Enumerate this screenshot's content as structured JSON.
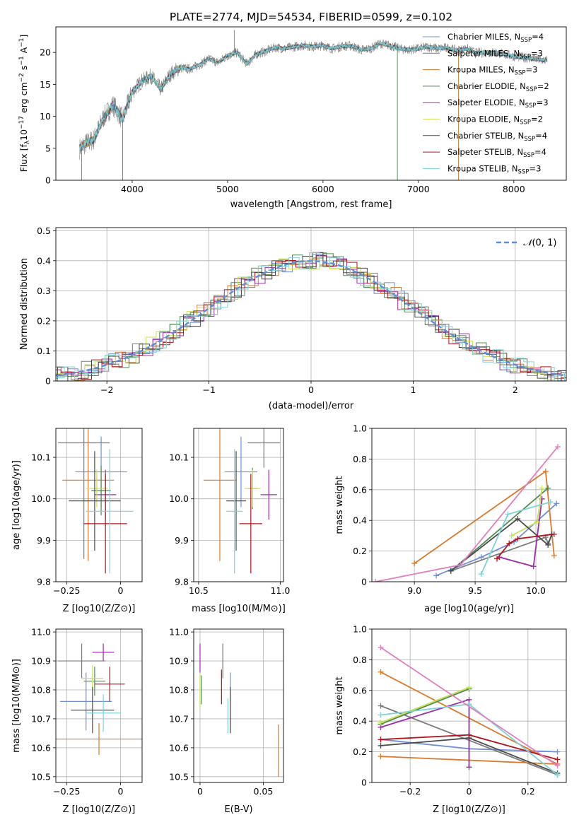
{
  "title": "PLATE=2774, MJD=54534, FIBERID=0599, z=0.102",
  "models": [
    {
      "name": "Chabrier MILES, N<sub>SSP</sub>=4",
      "label_main": "Chabrier MILES, N",
      "label_sub": "SSP",
      "label_tail": "=4",
      "color": "#6f8fd6"
    },
    {
      "name": "Salpeter MILES, N_SSP=3",
      "label_main": "Salpeter MILES, N",
      "label_sub": "SSP",
      "label_tail": "=3",
      "color": "#7b7b7b"
    },
    {
      "name": "Kroupa MILES, N_SSP=3",
      "label_main": "Kroupa MILES, N",
      "label_sub": "SSP",
      "label_tail": "=3",
      "color": "#d97a2b"
    },
    {
      "name": "Chabrier ELODIE, N_SSP=2",
      "label_main": "Chabrier ELODIE, N",
      "label_sub": "SSP",
      "label_tail": "=2",
      "color": "#4e8a4e"
    },
    {
      "name": "Salpeter ELODIE, N_SSP=3",
      "label_main": "Salpeter ELODIE, N",
      "label_sub": "SSP",
      "label_tail": "=3",
      "color": "#9a2ea6"
    },
    {
      "name": "Kroupa ELODIE, N_SSP=2",
      "label_main": "Kroupa ELODIE, N",
      "label_sub": "SSP",
      "label_tail": "=2",
      "color": "#c8e05a"
    },
    {
      "name": "Chabrier STELIB, N_SSP=4",
      "label_main": "Chabrier STELIB, N",
      "label_sub": "SSP",
      "label_tail": "=4",
      "color": "#4a4a4a"
    },
    {
      "name": "Salpeter STELIB, N_SSP=4",
      "label_main": "Salpeter STELIB, N",
      "label_sub": "SSP",
      "label_tail": "=4",
      "color": "#b0141c"
    },
    {
      "name": "Kroupa STELIB, N_SSP=3",
      "label_main": "Kroupa STELIB, N",
      "label_sub": "SSP",
      "label_tail": "=3",
      "color": "#7fd3d6"
    }
  ],
  "chart_data": [
    {
      "type": "line",
      "id": "spectrum",
      "xlabel": "wavelength [Angstrom, rest frame]",
      "ylabel": "Flux [f_λ 10^-17 erg cm^-2 s^-1 A^-1]",
      "ylabel_parts": {
        "a": "Flux [f",
        "b": "λ",
        "c": "10",
        "d": "−17",
        "e": " erg cm",
        "f": "−2",
        "g": " s",
        "h": "−1",
        "i": " A",
        "j": "−1",
        "k": "]"
      },
      "xlim": [
        3200,
        8550
      ],
      "ylim": [
        0,
        24
      ],
      "xticks": [
        4000,
        5000,
        6000,
        7000,
        8000
      ],
      "yticks": [
        0,
        5,
        10,
        15,
        20
      ],
      "envelope": [
        [
          3450,
          5.0
        ],
        [
          3500,
          5.6
        ],
        [
          3600,
          6.4
        ],
        [
          3700,
          9.8
        ],
        [
          3800,
          11.8
        ],
        [
          3900,
          9.5
        ],
        [
          4000,
          13.8
        ],
        [
          4100,
          15.5
        ],
        [
          4200,
          16.3
        ],
        [
          4300,
          14.2
        ],
        [
          4400,
          16.6
        ],
        [
          4500,
          17.6
        ],
        [
          4600,
          17.4
        ],
        [
          4700,
          18.0
        ],
        [
          4800,
          19.0
        ],
        [
          4900,
          18.4
        ],
        [
          5000,
          19.5
        ],
        [
          5100,
          20.0
        ],
        [
          5200,
          18.2
        ],
        [
          5300,
          19.7
        ],
        [
          5400,
          20.2
        ],
        [
          5500,
          20.8
        ],
        [
          5600,
          20.6
        ],
        [
          5700,
          20.9
        ],
        [
          5800,
          21.1
        ],
        [
          5900,
          20.9
        ],
        [
          6000,
          21.1
        ],
        [
          6100,
          20.6
        ],
        [
          6200,
          21.0
        ],
        [
          6300,
          21.0
        ],
        [
          6400,
          20.4
        ],
        [
          6500,
          20.6
        ],
        [
          6600,
          21.4
        ],
        [
          6700,
          21.1
        ],
        [
          6800,
          20.6
        ],
        [
          6900,
          20.4
        ],
        [
          7000,
          20.6
        ],
        [
          7100,
          20.9
        ],
        [
          7200,
          20.6
        ],
        [
          7300,
          20.7
        ],
        [
          7400,
          20.3
        ],
        [
          7500,
          20.6
        ],
        [
          7600,
          19.9
        ],
        [
          7700,
          20.0
        ],
        [
          7800,
          20.0
        ],
        [
          7900,
          19.7
        ],
        [
          8000,
          19.4
        ],
        [
          8100,
          19.2
        ],
        [
          8200,
          19.0
        ],
        [
          8300,
          18.8
        ],
        [
          8350,
          18.7
        ]
      ]
    },
    {
      "type": "bar",
      "id": "residual-histogram",
      "xlabel": "(data-model)/error",
      "ylabel": "Normed distribution",
      "xlim": [
        -2.5,
        2.5
      ],
      "ylim": [
        0,
        0.51
      ],
      "xticks": [
        -2,
        -1,
        0,
        1,
        2
      ],
      "yticks": [
        0.0,
        0.1,
        0.2,
        0.3,
        0.4,
        0.5
      ],
      "legend": "𝒩(0, 1)",
      "legend_parts": {
        "a": "𝒩",
        "b": "(0, 1)"
      },
      "bin_width": 0.1
    },
    {
      "type": "scatter",
      "id": "age-vs-z",
      "xlabel": "Z [log10(Z/Z⊙)]",
      "ylabel": "age [log10(age/yr)]",
      "xlim": [
        -0.3,
        0.1
      ],
      "ylim": [
        9.8,
        10.17
      ],
      "xticks": [
        -0.25,
        0.0
      ],
      "yticks": [
        9.8,
        9.9,
        10.0,
        10.1
      ],
      "points": [
        {
          "x": -0.09,
          "xerr": 0.12,
          "y": 10.065,
          "yerr": 0.085
        },
        {
          "x": -0.17,
          "xerr": 0.12,
          "y": 10.135,
          "yerr": 0.28
        },
        {
          "x": -0.15,
          "xerr": 0.12,
          "y": 10.045,
          "yerr": 0.195
        },
        {
          "x": -0.09,
          "xerr": 0.045,
          "y": 10.02,
          "yerr": 0.06
        },
        {
          "x": -0.07,
          "xerr": 0.05,
          "y": 10.01,
          "yerr": 0.06
        },
        {
          "x": -0.11,
          "xerr": 0.05,
          "y": 10.025,
          "yerr": 0.045
        },
        {
          "x": -0.12,
          "xerr": 0.12,
          "y": 9.995,
          "yerr": 0.12
        },
        {
          "x": -0.07,
          "xerr": 0.1,
          "y": 9.94,
          "yerr": 0.12
        },
        {
          "x": -0.05,
          "xerr": 0.11,
          "y": 9.97,
          "yerr": 0.15
        }
      ]
    },
    {
      "type": "scatter",
      "id": "age-vs-mass",
      "xlabel": "mass [log10(M/M⊙)]",
      "ylabel": "",
      "xlim": [
        10.47,
        11.02
      ],
      "ylim": [
        9.8,
        10.17
      ],
      "xticks": [
        10.5,
        11.0
      ],
      "yticks": [
        9.8,
        9.9,
        10.0,
        10.1
      ],
      "points": [
        {
          "x": 10.76,
          "xerr": 0.1,
          "y": 10.065,
          "yerr": 0.085
        },
        {
          "x": 10.9,
          "xerr": 0.1,
          "y": 10.135,
          "yerr": 0.06
        },
        {
          "x": 10.63,
          "xerr": 0.1,
          "y": 10.045,
          "yerr": 0.195
        },
        {
          "x": 10.83,
          "xerr": 0.03,
          "y": 10.025,
          "yerr": 0.05
        },
        {
          "x": 10.93,
          "xerr": 0.05,
          "y": 10.01,
          "yerr": 0.06
        },
        {
          "x": 10.83,
          "xerr": 0.05,
          "y": 10.025,
          "yerr": 0.045
        },
        {
          "x": 10.73,
          "xerr": 0.06,
          "y": 9.995,
          "yerr": 0.12
        },
        {
          "x": 10.82,
          "xerr": 0.07,
          "y": 9.94,
          "yerr": 0.12
        },
        {
          "x": 10.72,
          "xerr": 0.05,
          "y": 9.97,
          "yerr": 0.15
        }
      ]
    },
    {
      "type": "line",
      "id": "mass-weight-vs-age",
      "xlabel": "age [log10(age/yr)]",
      "ylabel": "mass weight",
      "xlim": [
        8.65,
        10.25
      ],
      "ylim": [
        0,
        1.0
      ],
      "xticks": [
        9.0,
        9.5,
        10.0
      ],
      "yticks": [
        0.0,
        0.2,
        0.4,
        0.6,
        0.8,
        1.0
      ],
      "series": [
        [
          [
            9.18,
            0.04
          ],
          [
            9.55,
            0.16
          ],
          [
            9.82,
            0.26
          ],
          [
            10.17,
            0.51
          ]
        ],
        [
          [
            9.3,
            0.07
          ],
          [
            10.08,
            0.29
          ],
          [
            10.1,
            0.25
          ]
        ],
        [
          [
            9.0,
            0.12
          ],
          [
            10.08,
            0.72
          ],
          [
            10.15,
            0.17
          ]
        ],
        [
          [
            9.3,
            0.07
          ],
          [
            10.1,
            0.61
          ]
        ],
        [
          [
            9.7,
            0.16
          ],
          [
            9.98,
            0.1
          ],
          [
            10.05,
            0.54
          ]
        ],
        [
          [
            9.8,
            0.3
          ],
          [
            10.01,
            0.39
          ],
          [
            10.05,
            0.61
          ]
        ],
        [
          [
            9.3,
            0.07
          ],
          [
            9.85,
            0.41
          ],
          [
            10.1,
            0.24
          ],
          [
            10.13,
            0.31
          ]
        ],
        [
          [
            9.68,
            0.15
          ],
          [
            9.78,
            0.25
          ],
          [
            9.85,
            0.28
          ],
          [
            10.15,
            0.31
          ]
        ],
        [
          [
            9.55,
            0.05
          ],
          [
            9.77,
            0.44
          ],
          [
            10.12,
            0.52
          ]
        ]
      ],
      "extra": [
        [
          [
            8.68,
            0.0
          ],
          [
            9.38,
            0.11
          ],
          [
            10.18,
            0.88
          ]
        ]
      ]
    },
    {
      "type": "scatter",
      "id": "mass-vs-z",
      "xlabel": "Z [log10(Z/Z⊙)]",
      "ylabel": "mass [log10(M/M⊙)]",
      "xlim": [
        -0.3,
        0.1
      ],
      "ylim": [
        10.48,
        11.01
      ],
      "xticks": [
        -0.25,
        0.0
      ],
      "yticks": [
        10.5,
        10.6,
        10.7,
        10.8,
        10.9,
        11.0
      ],
      "points": [
        {
          "x": -0.16,
          "xerr": 0.12,
          "y": 10.76,
          "yerr": 0.1
        },
        {
          "x": -0.18,
          "xerr": 0.11,
          "y": 10.9,
          "yerr": 0.06
        },
        {
          "x": -0.1,
          "xerr": 0.2,
          "y": 10.63,
          "yerr": 0.055
        },
        {
          "x": -0.12,
          "xerr": 0.05,
          "y": 10.83,
          "yerr": 0.05
        },
        {
          "x": -0.08,
          "xerr": 0.05,
          "y": 10.93,
          "yerr": 0.03
        },
        {
          "x": -0.13,
          "xerr": 0.05,
          "y": 10.84,
          "yerr": 0.045
        },
        {
          "x": -0.13,
          "xerr": 0.1,
          "y": 10.73,
          "yerr": 0.08
        },
        {
          "x": -0.05,
          "xerr": 0.07,
          "y": 10.82,
          "yerr": 0.06
        },
        {
          "x": -0.08,
          "xerr": 0.08,
          "y": 10.72,
          "yerr": 0.065
        }
      ]
    },
    {
      "type": "scatter",
      "id": "mass-vs-ebv",
      "xlabel": "E(B-V)",
      "ylabel": "",
      "xlim": [
        -0.005,
        0.066
      ],
      "ylim": [
        10.48,
        11.01
      ],
      "xticks": [
        0.0,
        0.05
      ],
      "yticks": [
        10.5,
        10.6,
        10.7,
        10.8,
        10.9,
        11.0
      ],
      "points": [
        {
          "x": 0.024,
          "xerr": 0,
          "y": 10.76,
          "yerr": 0.1
        },
        {
          "x": 0.018,
          "xerr": 0,
          "y": 10.9,
          "yerr": 0.06
        },
        {
          "x": 0.062,
          "xerr": 0,
          "y": 10.59,
          "yerr": 0.09
        },
        {
          "x": 0.001,
          "xerr": 0,
          "y": 10.8,
          "yerr": 0.05
        },
        {
          "x": 0.0,
          "xerr": 0,
          "y": 10.91,
          "yerr": 0.05
        },
        {
          "x": 0.0,
          "xerr": 0,
          "y": 10.8,
          "yerr": 0.06
        },
        {
          "x": 0.024,
          "xerr": 0,
          "y": 10.73,
          "yerr": 0.08
        },
        {
          "x": 0.017,
          "xerr": 0,
          "y": 10.81,
          "yerr": 0.06
        },
        {
          "x": 0.022,
          "xerr": 0,
          "y": 10.71,
          "yerr": 0.06
        }
      ]
    },
    {
      "type": "line",
      "id": "mass-weight-vs-z",
      "xlabel": "Z [log10(Z/Z⊙)]",
      "ylabel": "mass weight",
      "xlim": [
        -0.33,
        0.33
      ],
      "ylim": [
        0,
        1.0
      ],
      "xticks": [
        -0.2,
        0.0,
        0.2
      ],
      "yticks": [
        0.0,
        0.2,
        0.4,
        0.6,
        0.8,
        1.0
      ],
      "series": [
        [
          [
            -0.3,
            0.28
          ],
          [
            0.0,
            0.22
          ],
          [
            0.3,
            0.2
          ]
        ],
        [
          [
            -0.3,
            0.5
          ],
          [
            0.3,
            0.05
          ]
        ],
        [
          [
            -0.3,
            0.17
          ],
          [
            0.3,
            0.12
          ],
          [
            -0.3,
            0.72
          ]
        ],
        [
          [
            -0.3,
            0.38
          ],
          [
            0.0,
            0.61
          ]
        ],
        [
          [
            -0.3,
            0.36
          ],
          [
            0.0,
            0.54
          ],
          [
            0.0,
            0.1
          ]
        ],
        [
          [
            -0.3,
            0.39
          ],
          [
            0.0,
            0.62
          ]
        ],
        [
          [
            -0.3,
            0.24
          ],
          [
            0.0,
            0.29
          ],
          [
            0.3,
            0.06
          ]
        ],
        [
          [
            -0.3,
            0.28
          ],
          [
            0.0,
            0.31
          ],
          [
            0.3,
            0.15
          ]
        ],
        [
          [
            -0.3,
            0.44
          ],
          [
            0.0,
            0.51
          ],
          [
            0.3,
            0.05
          ]
        ]
      ],
      "extra": [
        [
          [
            -0.3,
            0.88
          ],
          [
            0.3,
            0.11
          ]
        ]
      ]
    }
  ]
}
